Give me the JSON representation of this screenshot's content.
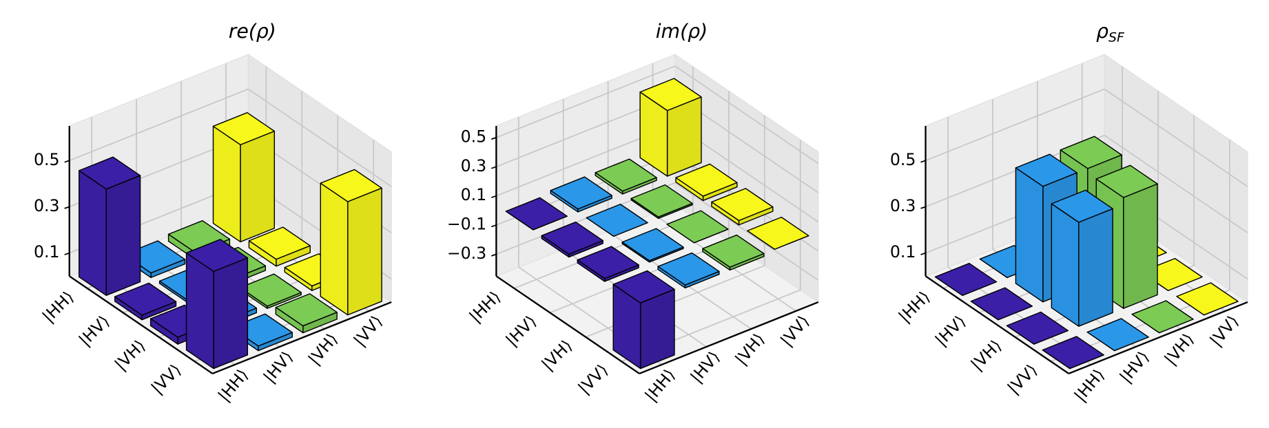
{
  "chart_data": [
    {
      "type": "bar3d",
      "title": "re(ρ)",
      "categories": [
        "|HH⟩",
        "|HV⟩",
        "|VH⟩",
        "|VV⟩"
      ],
      "colors": [
        "#3b1fa6",
        "#2b97e8",
        "#7ccb55",
        "#f7f71c"
      ],
      "values": [
        [
          0.46,
          0.02,
          0.03,
          0.42
        ],
        [
          0.02,
          0.01,
          0.02,
          0.03
        ],
        [
          0.03,
          0.02,
          0.01,
          0.02
        ],
        [
          0.42,
          0.02,
          0.03,
          0.49
        ]
      ],
      "zlim": [
        0,
        0.65
      ],
      "zticks": [
        0.1,
        0.3,
        0.5
      ],
      "grid": true
    },
    {
      "type": "bar3d",
      "title": "im(ρ)",
      "categories": [
        "|HH⟩",
        "|HV⟩",
        "|VH⟩",
        "|VV⟩"
      ],
      "colors": [
        "#3b1fa6",
        "#2b97e8",
        "#7ccb55",
        "#f7f71c"
      ],
      "values": [
        [
          0.0,
          0.02,
          0.02,
          0.45
        ],
        [
          -0.02,
          0.0,
          0.01,
          0.03
        ],
        [
          -0.02,
          -0.01,
          0.0,
          0.03
        ],
        [
          -0.45,
          -0.02,
          -0.02,
          0.0
        ]
      ],
      "zlim": [
        -0.45,
        0.58
      ],
      "zticks": [
        {
          "value": -0.3,
          "label": "−0.3"
        },
        {
          "value": -0.1,
          "label": "−0.1"
        },
        0.1,
        0.3,
        0.5
      ],
      "grid": true
    },
    {
      "type": "bar3d",
      "title": "ρ",
      "title_subscript": "SF",
      "categories": [
        "|HH⟩",
        "|HV⟩",
        "|VH⟩",
        "|VV⟩"
      ],
      "colors": [
        "#3b1fa6",
        "#2b97e8",
        "#7ccb55",
        "#f7f71c"
      ],
      "values": [
        [
          0,
          0,
          0,
          0
        ],
        [
          0,
          0.5,
          0.5,
          0
        ],
        [
          0,
          0.45,
          0.48,
          0
        ],
        [
          0,
          0,
          0,
          0
        ]
      ],
      "zlim": [
        0,
        0.65
      ],
      "zticks": [
        0.1,
        0.3,
        0.5
      ],
      "grid": true
    }
  ]
}
